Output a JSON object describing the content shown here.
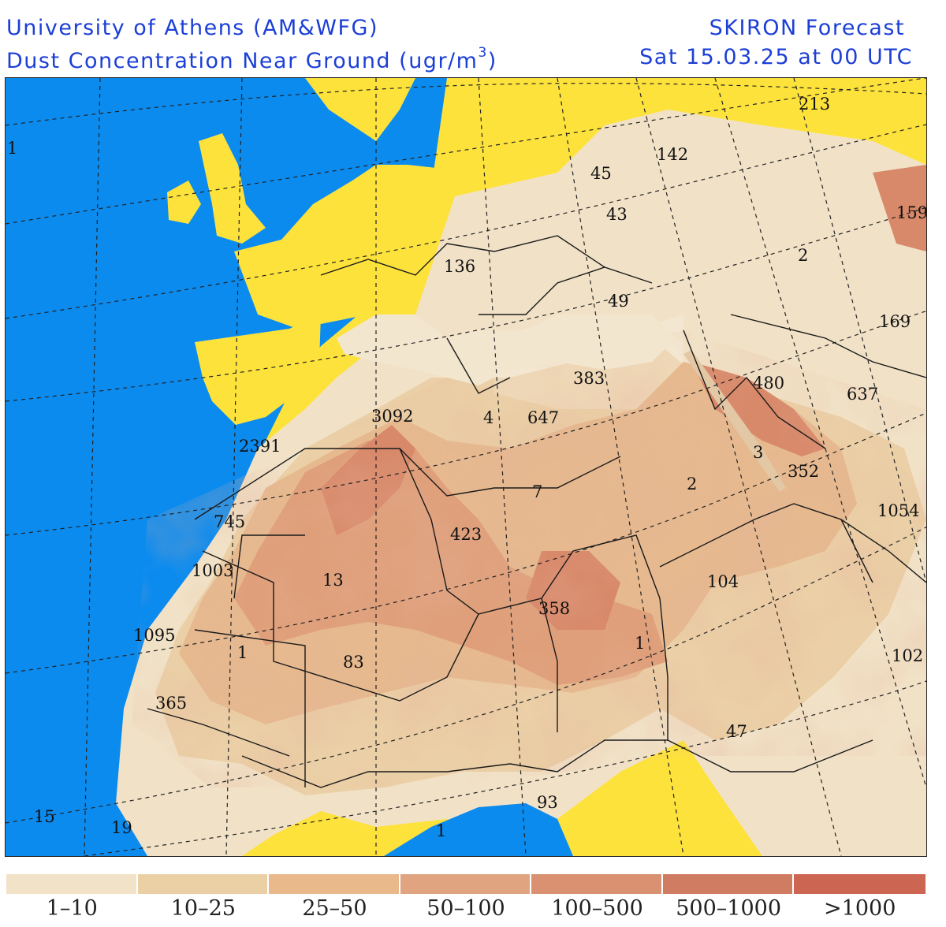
{
  "header": {
    "institution": "University of Athens (AM&WFG)",
    "title": "Dust Concentration Near Ground (ugr/m",
    "unit_superscript": "3",
    "title_close": ")",
    "product": "SKIRON Forecast",
    "valid_time": "Sat 15.03.25 at 00 UTC"
  },
  "colors": {
    "ocean": "#0c8bef",
    "no_dust": "#fde23c",
    "border_line": "#1a1a1a",
    "grid_line": "#222222"
  },
  "map_labels": [
    {
      "text": "1",
      "region": "north-atlantic-azores"
    },
    {
      "text": "213",
      "region": "black-sea-north"
    },
    {
      "text": "142",
      "region": "eastern-europe"
    },
    {
      "text": "45",
      "region": "eastern-europe"
    },
    {
      "text": "43",
      "region": "balkans"
    },
    {
      "text": "159",
      "region": "caspian"
    },
    {
      "text": "136",
      "region": "italy"
    },
    {
      "text": "2",
      "region": "turkey"
    },
    {
      "text": "49",
      "region": "aegean"
    },
    {
      "text": "169",
      "region": "iran"
    },
    {
      "text": "383",
      "region": "libya-coast"
    },
    {
      "text": "480",
      "region": "middle-east"
    },
    {
      "text": "637",
      "region": "persian-gulf"
    },
    {
      "text": "3092",
      "region": "algeria-tunisia"
    },
    {
      "text": "4",
      "region": "libya"
    },
    {
      "text": "647",
      "region": "libya"
    },
    {
      "text": "2391",
      "region": "morocco"
    },
    {
      "text": "3",
      "region": "saudi-arabia"
    },
    {
      "text": "352",
      "region": "saudi-arabia"
    },
    {
      "text": "2",
      "region": "egypt-sudan"
    },
    {
      "text": "7",
      "region": "libya-south"
    },
    {
      "text": "1054",
      "region": "arabian-sea"
    },
    {
      "text": "745",
      "region": "western-sahara"
    },
    {
      "text": "423",
      "region": "algeria-niger"
    },
    {
      "text": "1003",
      "region": "mauritania"
    },
    {
      "text": "13",
      "region": "mali-north"
    },
    {
      "text": "104",
      "region": "sudan"
    },
    {
      "text": "358",
      "region": "niger-chad"
    },
    {
      "text": "1095",
      "region": "mauritania-coast"
    },
    {
      "text": "1",
      "region": "mali"
    },
    {
      "text": "1",
      "region": "chad"
    },
    {
      "text": "83",
      "region": "mali-south"
    },
    {
      "text": "102",
      "region": "horn-of-africa"
    },
    {
      "text": "365",
      "region": "senegal"
    },
    {
      "text": "47",
      "region": "central-africa"
    },
    {
      "text": "93",
      "region": "nigeria-coast"
    },
    {
      "text": "15",
      "region": "atlantic-south"
    },
    {
      "text": "19",
      "region": "atlantic-south"
    },
    {
      "text": "1",
      "region": "gulf-of-guinea"
    }
  ],
  "legend": [
    {
      "label": "1–10",
      "color": "#f2e3c8"
    },
    {
      "label": "10–25",
      "color": "#ecd0a5"
    },
    {
      "label": "25–50",
      "color": "#e9b98b"
    },
    {
      "label": "50–100",
      "color": "#e0a480"
    },
    {
      "label": "100–500",
      "color": "#d99171"
    },
    {
      "label": "500–1000",
      "color": "#d07c63"
    },
    {
      "label": ">1000",
      "color": "#cd6553"
    }
  ]
}
